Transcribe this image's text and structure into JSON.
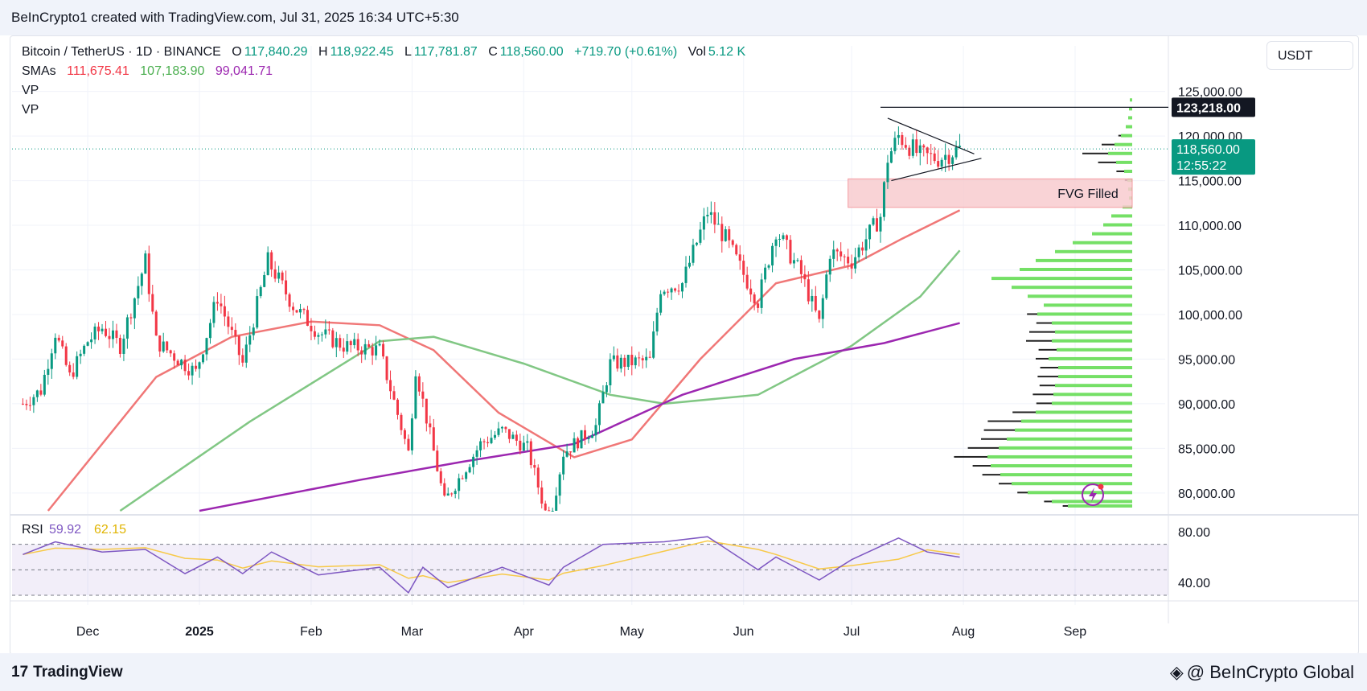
{
  "header": {
    "credit": "BeInCrypto1 created with TradingView.com, Jul 31, 2025 16:34 UTC+5:30"
  },
  "legend": {
    "symbol": "Bitcoin / TetherUS · 1D · BINANCE",
    "o_label": "O",
    "o_value": "117,840.29",
    "h_label": "H",
    "h_value": "118,922.45",
    "l_label": "L",
    "l_value": "117,781.87",
    "c_label": "C",
    "c_value": "118,560.00",
    "change": "+719.70 (+0.61%)",
    "vol_label": "Vol",
    "vol_value": "5.12 K",
    "smas_label": "SMAs",
    "sma1": "111,675.41",
    "sma2": "107,183.90",
    "sma3": "99,041.71",
    "vp1": "VP",
    "vp2": "VP"
  },
  "currency_button": "USDT",
  "price_tags": {
    "high_label": "123,218.00",
    "last_price": "118,560.00",
    "countdown": "12:55:22"
  },
  "annotation": "FVG Filled",
  "rsi_legend": {
    "label": "RSI",
    "value": "59.92",
    "ma_value": "62.15"
  },
  "footer": {
    "logo": "TradingView",
    "brand": "@ BeInCrypto Global"
  },
  "colors": {
    "up": "#089981",
    "down": "#f23645",
    "sma_fast": "#f07777",
    "sma_mid": "#81c784",
    "sma_slow": "#9c27b0",
    "rsi_line": "#7e57c2",
    "rsi_ma": "#f7c948",
    "vp_up": "#66dd55",
    "vp_down": "#222222",
    "fvg": "#f8cccf"
  },
  "chart_data": {
    "type": "candlestick",
    "symbol": "BTC/USDT",
    "timeframe": "1D",
    "ylim": [
      78000,
      126500
    ],
    "y_ticks": [
      "125,000.00",
      "120,000.00",
      "115,000.00",
      "110,000.00",
      "105,000.00",
      "100,000.00",
      "95,000.00",
      "90,000.00",
      "85,000.00",
      "80,000.00"
    ],
    "x_ticks": [
      "Dec",
      "2025",
      "Feb",
      "Mar",
      "Apr",
      "May",
      "Jun",
      "Jul",
      "Aug",
      "Sep"
    ],
    "close_path": [
      {
        "date": "2024-11-13",
        "close": 90000
      },
      {
        "date": "2024-11-18",
        "close": 91500
      },
      {
        "date": "2024-11-22",
        "close": 98000
      },
      {
        "date": "2024-11-26",
        "close": 93000
      },
      {
        "date": "2024-12-01",
        "close": 97000
      },
      {
        "date": "2024-12-05",
        "close": 98500
      },
      {
        "date": "2024-12-10",
        "close": 96500
      },
      {
        "date": "2024-12-17",
        "close": 106000
      },
      {
        "date": "2024-12-20",
        "close": 97000
      },
      {
        "date": "2024-12-26",
        "close": 95000
      },
      {
        "date": "2024-12-31",
        "close": 93500
      },
      {
        "date": "2025-01-06",
        "close": 102000
      },
      {
        "date": "2025-01-13",
        "close": 94500
      },
      {
        "date": "2025-01-20",
        "close": 106000
      },
      {
        "date": "2025-01-27",
        "close": 101000
      },
      {
        "date": "2025-02-03",
        "close": 98000
      },
      {
        "date": "2025-02-10",
        "close": 96500
      },
      {
        "date": "2025-02-20",
        "close": 96000
      },
      {
        "date": "2025-02-28",
        "close": 84500
      },
      {
        "date": "2025-03-02",
        "close": 94000
      },
      {
        "date": "2025-03-10",
        "close": 79000
      },
      {
        "date": "2025-03-20",
        "close": 85500
      },
      {
        "date": "2025-03-26",
        "close": 87000
      },
      {
        "date": "2025-04-02",
        "close": 85000
      },
      {
        "date": "2025-04-08",
        "close": 76500
      },
      {
        "date": "2025-04-12",
        "close": 84500
      },
      {
        "date": "2025-04-21",
        "close": 87500
      },
      {
        "date": "2025-04-25",
        "close": 94500
      },
      {
        "date": "2025-05-06",
        "close": 94800
      },
      {
        "date": "2025-05-09",
        "close": 103000
      },
      {
        "date": "2025-05-15",
        "close": 103500
      },
      {
        "date": "2025-05-22",
        "close": 111500
      },
      {
        "date": "2025-05-27",
        "close": 108500
      },
      {
        "date": "2025-06-01",
        "close": 104500
      },
      {
        "date": "2025-06-05",
        "close": 101500
      },
      {
        "date": "2025-06-10",
        "close": 109500
      },
      {
        "date": "2025-06-17",
        "close": 104500
      },
      {
        "date": "2025-06-22",
        "close": 99000
      },
      {
        "date": "2025-06-25",
        "close": 107000
      },
      {
        "date": "2025-07-01",
        "close": 106000
      },
      {
        "date": "2025-07-09",
        "close": 111000
      },
      {
        "date": "2025-07-11",
        "close": 117500
      },
      {
        "date": "2025-07-14",
        "close": 120000
      },
      {
        "date": "2025-07-20",
        "close": 117800
      },
      {
        "date": "2025-07-25",
        "close": 117500
      },
      {
        "date": "2025-07-31",
        "close": 118560
      }
    ],
    "sma_series": [
      {
        "name": "SMA",
        "last": 111675.41,
        "points": [
          {
            "date": "2024-11-20",
            "v": 78000
          },
          {
            "date": "2024-12-20",
            "v": 93000
          },
          {
            "date": "2025-01-10",
            "v": 97500
          },
          {
            "date": "2025-02-01",
            "v": 99200
          },
          {
            "date": "2025-02-20",
            "v": 98800
          },
          {
            "date": "2025-03-07",
            "v": 96000
          },
          {
            "date": "2025-03-25",
            "v": 89000
          },
          {
            "date": "2025-04-15",
            "v": 84000
          },
          {
            "date": "2025-05-01",
            "v": 86000
          },
          {
            "date": "2025-05-20",
            "v": 95000
          },
          {
            "date": "2025-06-10",
            "v": 103500
          },
          {
            "date": "2025-07-01",
            "v": 105500
          },
          {
            "date": "2025-07-15",
            "v": 108500
          },
          {
            "date": "2025-07-31",
            "v": 111675.41
          }
        ]
      },
      {
        "name": "SMA",
        "last": 107183.9,
        "points": [
          {
            "date": "2024-12-10",
            "v": 78000
          },
          {
            "date": "2025-01-15",
            "v": 88000
          },
          {
            "date": "2025-02-20",
            "v": 97000
          },
          {
            "date": "2025-03-07",
            "v": 97500
          },
          {
            "date": "2025-04-01",
            "v": 94500
          },
          {
            "date": "2025-04-25",
            "v": 91000
          },
          {
            "date": "2025-05-10",
            "v": 90000
          },
          {
            "date": "2025-06-05",
            "v": 91000
          },
          {
            "date": "2025-07-01",
            "v": 96500
          },
          {
            "date": "2025-07-20",
            "v": 102000
          },
          {
            "date": "2025-07-31",
            "v": 107183.9
          }
        ]
      },
      {
        "name": "SMA",
        "last": 99041.71,
        "points": [
          {
            "date": "2025-01-01",
            "v": 78000
          },
          {
            "date": "2025-02-15",
            "v": 81500
          },
          {
            "date": "2025-03-15",
            "v": 83500
          },
          {
            "date": "2025-04-15",
            "v": 85500
          },
          {
            "date": "2025-05-15",
            "v": 91000
          },
          {
            "date": "2025-06-15",
            "v": 95000
          },
          {
            "date": "2025-07-10",
            "v": 96800
          },
          {
            "date": "2025-07-31",
            "v": 99041.71
          }
        ]
      }
    ],
    "triangle": {
      "upper": [
        {
          "date": "2025-07-11",
          "v": 122000
        },
        {
          "date": "2025-08-04",
          "v": 118000
        }
      ],
      "lower": [
        {
          "date": "2025-07-12",
          "v": 115000
        },
        {
          "date": "2025-08-06",
          "v": 117500
        }
      ],
      "high_line": {
        "from": "2025-07-09",
        "v": 123218
      }
    },
    "fvg_zone": {
      "from": "2025-06-30",
      "y_low": 112000,
      "y_high": 115200,
      "label": "FVG Filled"
    },
    "rsi": {
      "ylim": [
        30,
        90
      ],
      "ticks": [
        "80.00",
        "40.00"
      ],
      "band": [
        70,
        30
      ],
      "mid": 50,
      "last": 59.92,
      "ma_last": 62.15,
      "path": [
        {
          "date": "2024-11-13",
          "v": 62
        },
        {
          "date": "2024-11-22",
          "v": 72
        },
        {
          "date": "2024-12-05",
          "v": 64
        },
        {
          "date": "2024-12-17",
          "v": 66
        },
        {
          "date": "2024-12-28",
          "v": 47
        },
        {
          "date": "2025-01-06",
          "v": 60
        },
        {
          "date": "2025-01-13",
          "v": 47
        },
        {
          "date": "2025-01-21",
          "v": 64
        },
        {
          "date": "2025-02-03",
          "v": 46
        },
        {
          "date": "2025-02-20",
          "v": 52
        },
        {
          "date": "2025-02-28",
          "v": 32
        },
        {
          "date": "2025-03-04",
          "v": 52
        },
        {
          "date": "2025-03-11",
          "v": 36
        },
        {
          "date": "2025-03-26",
          "v": 52
        },
        {
          "date": "2025-04-08",
          "v": 38
        },
        {
          "date": "2025-04-12",
          "v": 52
        },
        {
          "date": "2025-04-23",
          "v": 70
        },
        {
          "date": "2025-05-10",
          "v": 72
        },
        {
          "date": "2025-05-22",
          "v": 76
        },
        {
          "date": "2025-06-05",
          "v": 50
        },
        {
          "date": "2025-06-10",
          "v": 60
        },
        {
          "date": "2025-06-22",
          "v": 42
        },
        {
          "date": "2025-07-01",
          "v": 58
        },
        {
          "date": "2025-07-14",
          "v": 75
        },
        {
          "date": "2025-07-22",
          "v": 64
        },
        {
          "date": "2025-07-31",
          "v": 59.92
        }
      ]
    }
  }
}
